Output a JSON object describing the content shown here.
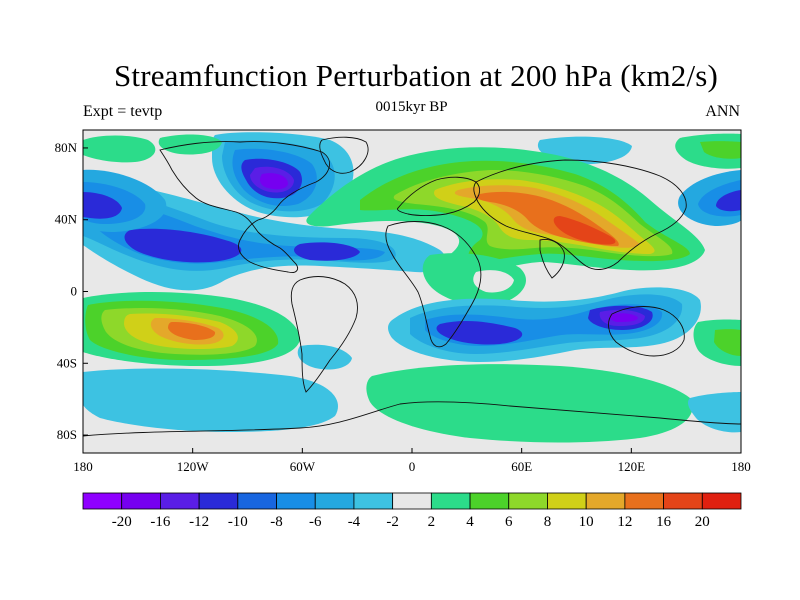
{
  "header": {
    "title": "Streamfunction Perturbation at 200 hPa (km2/s)",
    "left_string": "Expt = tevtp",
    "center_string": "0015kyr BP",
    "right_string": "ANN"
  },
  "chart_data": {
    "type": "heatmap",
    "projection": "cylindrical-equidistant",
    "xlim": [
      -180,
      180
    ],
    "ylim": [
      -90,
      90
    ],
    "x_ticks": [
      {
        "value": -180,
        "label": "180"
      },
      {
        "value": -120,
        "label": "120W"
      },
      {
        "value": -60,
        "label": "60W"
      },
      {
        "value": 0,
        "label": "0"
      },
      {
        "value": 60,
        "label": "60E"
      },
      {
        "value": 120,
        "label": "120E"
      },
      {
        "value": 180,
        "label": "180"
      }
    ],
    "y_ticks": [
      {
        "value": 80,
        "label": "80N"
      },
      {
        "value": 40,
        "label": "40N"
      },
      {
        "value": 0,
        "label": "0"
      },
      {
        "value": -40,
        "label": "40S"
      },
      {
        "value": -80,
        "label": "80S"
      }
    ],
    "contour_levels": [
      -20,
      -16,
      -12,
      -10,
      -8,
      -6,
      -4,
      -2,
      2,
      4,
      6,
      8,
      10,
      12,
      16,
      20
    ],
    "colors": [
      "#8f00ff",
      "#7600f0",
      "#5a1ee6",
      "#2a2ad8",
      "#1866e0",
      "#188ee6",
      "#24a8e0",
      "#3dc2e2",
      "#e8e8e8",
      "#2cdc8a",
      "#4cd22a",
      "#8ed82a",
      "#d0d018",
      "#e4a82a",
      "#e8701c",
      "#e44418",
      "#e02010"
    ],
    "colorbar_labels": [
      "-20",
      "-16",
      "-12",
      "-10",
      "-8",
      "-6",
      "-4",
      "-2",
      "2",
      "4",
      "6",
      "8",
      "10",
      "12",
      "16",
      "20"
    ],
    "features": [
      {
        "name": "north-america-low",
        "lon": -65,
        "lat": 52,
        "value": -20
      },
      {
        "name": "north-pacific-low",
        "lon": -178,
        "lat": 45,
        "value": -12
      },
      {
        "name": "west-pacific-low",
        "lon": 170,
        "lat": 45,
        "value": -12
      },
      {
        "name": "tropical-pacific-low",
        "lon": -120,
        "lat": 22,
        "value": -12
      },
      {
        "name": "atlantic-low",
        "lon": -45,
        "lat": 18,
        "value": -10
      },
      {
        "name": "eurasia-high",
        "lon": 90,
        "lat": 35,
        "value": 18
      },
      {
        "name": "south-pacific-high",
        "lon": -120,
        "lat": -22,
        "value": 16
      },
      {
        "name": "south-indian-low",
        "lon": 40,
        "lat": -25,
        "value": -12
      },
      {
        "name": "australia-low",
        "lon": 120,
        "lat": -20,
        "value": -16
      },
      {
        "name": "southern-ocean-high",
        "lon": 40,
        "lat": -65,
        "value": 4
      }
    ]
  }
}
